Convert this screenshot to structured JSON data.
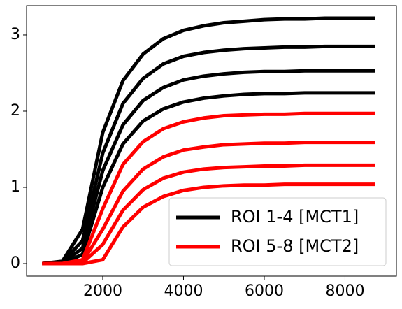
{
  "chart_data": {
    "type": "line",
    "x": [
      500,
      1000,
      1500,
      2000,
      2500,
      3000,
      3500,
      4000,
      4500,
      5000,
      5500,
      6000,
      6500,
      7000,
      7500,
      8000,
      8500,
      8750
    ],
    "series": [
      {
        "name": "ROI 1-4 [MCT1]",
        "color": "#000000",
        "lines": [
          [
            0,
            0.03,
            0.45,
            1.72,
            2.4,
            2.75,
            2.95,
            3.06,
            3.12,
            3.16,
            3.18,
            3.2,
            3.21,
            3.21,
            3.22,
            3.22,
            3.22,
            3.22
          ],
          [
            0,
            0.02,
            0.3,
            1.45,
            2.1,
            2.43,
            2.62,
            2.72,
            2.77,
            2.8,
            2.82,
            2.83,
            2.84,
            2.84,
            2.85,
            2.85,
            2.85,
            2.85
          ],
          [
            0,
            0.01,
            0.2,
            1.22,
            1.82,
            2.14,
            2.31,
            2.41,
            2.46,
            2.49,
            2.51,
            2.52,
            2.52,
            2.53,
            2.53,
            2.53,
            2.53,
            2.53
          ],
          [
            0,
            0,
            0.12,
            1.0,
            1.57,
            1.87,
            2.03,
            2.12,
            2.17,
            2.2,
            2.22,
            2.23,
            2.23,
            2.24,
            2.24,
            2.24,
            2.24,
            2.24
          ]
        ]
      },
      {
        "name": "ROI 5-8 [MCT2]",
        "color": "#ff0000",
        "lines": [
          [
            0,
            0,
            0.05,
            0.72,
            1.3,
            1.6,
            1.77,
            1.86,
            1.91,
            1.94,
            1.95,
            1.96,
            1.96,
            1.97,
            1.97,
            1.97,
            1.97,
            1.97
          ],
          [
            0,
            0,
            0.02,
            0.45,
            0.95,
            1.24,
            1.4,
            1.49,
            1.53,
            1.56,
            1.57,
            1.58,
            1.58,
            1.59,
            1.59,
            1.59,
            1.59,
            1.59
          ],
          [
            0,
            0,
            0.01,
            0.25,
            0.7,
            0.97,
            1.12,
            1.2,
            1.24,
            1.26,
            1.27,
            1.28,
            1.28,
            1.29,
            1.29,
            1.29,
            1.29,
            1.29
          ],
          [
            0,
            0,
            0,
            0.05,
            0.48,
            0.74,
            0.88,
            0.96,
            1.0,
            1.02,
            1.03,
            1.03,
            1.04,
            1.04,
            1.04,
            1.04,
            1.04,
            1.04
          ]
        ]
      }
    ],
    "xlim": [
      113,
      9273
    ],
    "xticks": [
      2000,
      4000,
      6000,
      8000
    ],
    "ylim": [
      -0.165,
      3.385
    ],
    "yticks": [
      0,
      1,
      2,
      3
    ],
    "legend": "lower right"
  }
}
